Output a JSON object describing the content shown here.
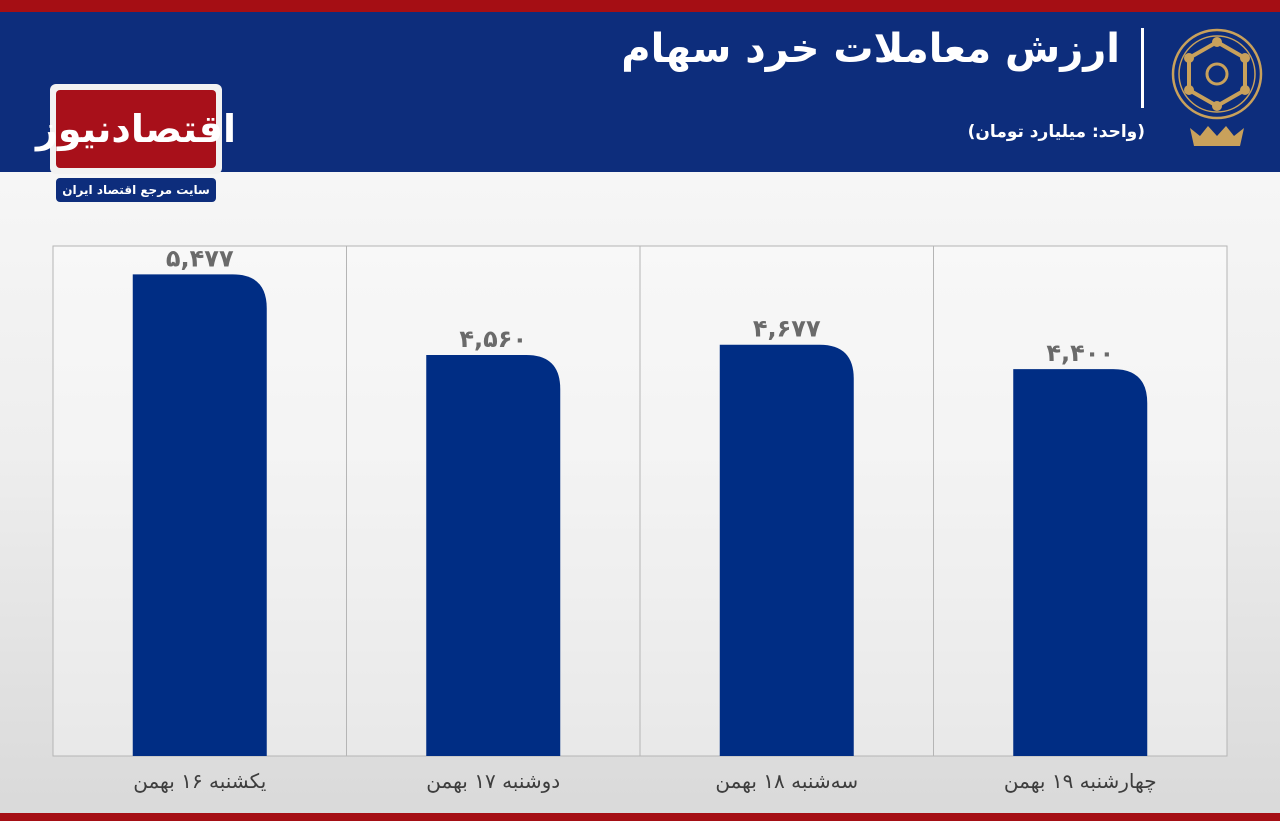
{
  "header": {
    "title": "ارزش معاملات خرد سهام",
    "unit": "(واحد: میلیارد تومان)"
  },
  "logo": {
    "name": "اقتصادنیوز",
    "tagline": "سایت مرجع اقتصاد ایران"
  },
  "colors": {
    "header_bg": "#0d2d7c",
    "accent_red": "#a50e14",
    "bar": "#002d84",
    "value_text": "#6a6a6a"
  },
  "chart_data": {
    "type": "bar",
    "title": "ارزش معاملات خرد سهام",
    "subtitle": "(واحد: میلیارد تومان)",
    "categories": [
      "یکشنبه ۱۶ بهمن",
      "دوشنبه ۱۷ بهمن",
      "سه‌شنبه ۱۸ بهمن",
      "چهارشنبه ۱۹ بهمن"
    ],
    "values": [
      5477,
      4560,
      4677,
      4400
    ],
    "value_labels": [
      "۵,۴۷۷",
      "۴,۵۶۰",
      "۴,۶۷۷",
      "۴,۴۰۰"
    ],
    "ylim": [
      0,
      5800
    ],
    "grid": false,
    "legend": "none"
  }
}
